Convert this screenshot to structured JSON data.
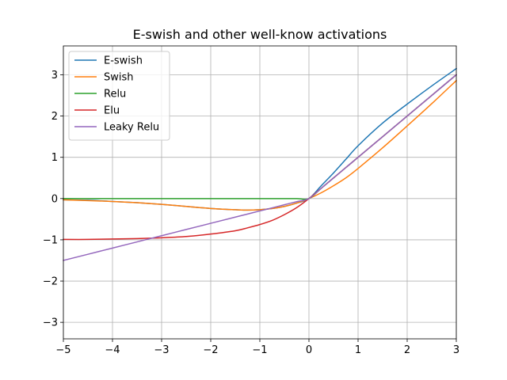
{
  "chart_data": {
    "type": "line",
    "title": "E-swish and other well-know activations",
    "xlabel": "",
    "ylabel": "",
    "xlim": [
      -5,
      3
    ],
    "ylim": [
      -3.4,
      3.7
    ],
    "x_ticks": [
      -5,
      -4,
      -3,
      -2,
      -1,
      0,
      1,
      2,
      3
    ],
    "y_ticks": [
      -3,
      -2,
      -1,
      0,
      1,
      2,
      3
    ],
    "x_tick_labels": [
      "−5",
      "−4",
      "−3",
      "−2",
      "−1",
      "0",
      "1",
      "2",
      "3"
    ],
    "y_tick_labels": [
      "−3",
      "−2",
      "−1",
      "0",
      "1",
      "2",
      "3"
    ],
    "grid": true,
    "legend_position": "top-left",
    "x": [
      -5,
      -4.5,
      -4,
      -3.5,
      -3,
      -2.5,
      -2,
      -1.5,
      -1.25,
      -1,
      -0.75,
      -0.5,
      -0.25,
      0,
      0.25,
      0.5,
      0.75,
      1,
      1.5,
      2,
      2.5,
      3
    ],
    "series": [
      {
        "name": "E-swish",
        "color": "#1f77b4",
        "values": [
          -0.03,
          -0.04,
          -0.07,
          -0.1,
          -0.14,
          -0.19,
          -0.24,
          -0.27,
          -0.28,
          -0.27,
          -0.24,
          -0.19,
          -0.11,
          0.0,
          0.31,
          0.62,
          0.95,
          1.28,
          1.83,
          2.29,
          2.73,
          3.15
        ]
      },
      {
        "name": "Swish",
        "color": "#ff7f0e",
        "values": [
          -0.03,
          -0.05,
          -0.07,
          -0.1,
          -0.14,
          -0.19,
          -0.24,
          -0.27,
          -0.28,
          -0.27,
          -0.24,
          -0.19,
          -0.11,
          0.0,
          0.14,
          0.31,
          0.5,
          0.73,
          1.23,
          1.76,
          2.3,
          2.86
        ]
      },
      {
        "name": "Relu",
        "color": "#2ca02c",
        "values": [
          0,
          0,
          0,
          0,
          0,
          0,
          0,
          0,
          0,
          0,
          0,
          0,
          0,
          0,
          0.25,
          0.5,
          0.75,
          1,
          1.5,
          2,
          2.5,
          3
        ]
      },
      {
        "name": "Elu",
        "color": "#d62728",
        "values": [
          -0.99,
          -0.99,
          -0.98,
          -0.97,
          -0.95,
          -0.92,
          -0.86,
          -0.78,
          -0.71,
          -0.63,
          -0.53,
          -0.39,
          -0.22,
          0,
          0.25,
          0.5,
          0.75,
          1,
          1.5,
          2,
          2.5,
          3
        ]
      },
      {
        "name": "Leaky Relu",
        "color": "#9467bd",
        "values": [
          -1.5,
          -1.35,
          -1.2,
          -1.05,
          -0.9,
          -0.75,
          -0.6,
          -0.45,
          -0.375,
          -0.3,
          -0.225,
          -0.15,
          -0.075,
          0,
          0.25,
          0.5,
          0.75,
          1,
          1.5,
          2,
          2.5,
          3
        ]
      }
    ]
  }
}
